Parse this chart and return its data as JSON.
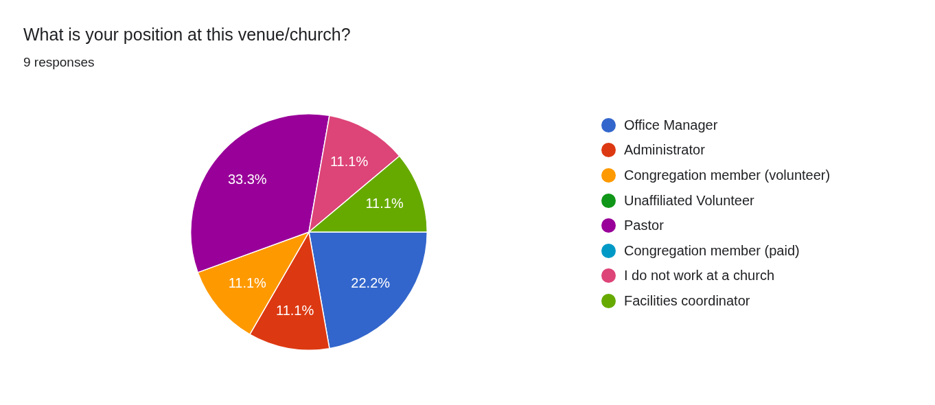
{
  "chart_data": {
    "type": "pie",
    "title": "What is your position at this venue/church?",
    "subtitle": "9 responses",
    "categories": [
      "Office Manager",
      "Administrator",
      "Congregation member (volunteer)",
      "Unaffiliated Volunteer",
      "Pastor",
      "Congregation member (paid)",
      "I do not work at a church",
      "Facilities coordinator"
    ],
    "values": [
      22.2,
      11.1,
      11.1,
      0,
      33.3,
      0,
      11.1,
      11.1
    ],
    "colors": [
      "#3366cc",
      "#dc3912",
      "#ff9900",
      "#109618",
      "#990099",
      "#0099c6",
      "#dd4477",
      "#66aa00"
    ],
    "value_labels": [
      "22.2%",
      "11.1%",
      "11.1%",
      null,
      "33.3%",
      null,
      "11.1%",
      "11.1%"
    ],
    "legend": "right"
  }
}
